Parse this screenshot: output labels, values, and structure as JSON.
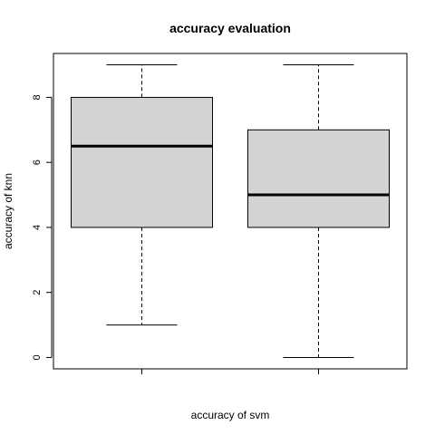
{
  "chart_data": {
    "type": "boxplot",
    "title": "accuracy evaluation",
    "xlabel": "accuracy of svm",
    "ylabel": "accuracy of knn",
    "ylim": [
      -0.35,
      9.35
    ],
    "yticks": [
      0,
      2,
      4,
      6,
      8
    ],
    "grid": false,
    "series": [
      {
        "min": 1,
        "q1": 4,
        "median": 6.5,
        "q3": 8,
        "max": 9
      },
      {
        "min": 0,
        "q1": 4,
        "median": 5,
        "q3": 7,
        "max": 9
      }
    ],
    "colors": {
      "box_fill": "#d3d3d3",
      "stroke": "#000000"
    }
  }
}
